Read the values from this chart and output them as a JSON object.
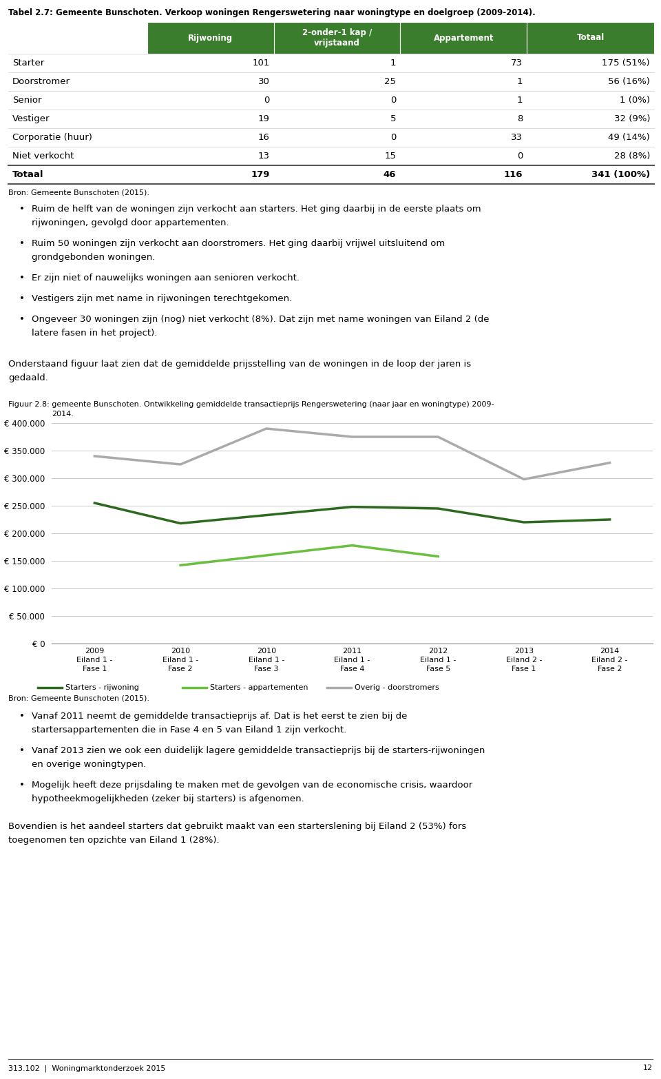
{
  "title_table": "Tabel 2.7: Gemeente Bunschoten. Verkoop woningen Rengerswetering naar woningtype en doelgroep (2009-2014).",
  "table_headers": [
    "",
    "Rijwoning",
    "2-onder-1 kap /\nvrijstaand",
    "Appartement",
    "Totaal"
  ],
  "table_rows": [
    [
      "Starter",
      "101",
      "1",
      "73",
      "175 (51%)"
    ],
    [
      "Doorstromer",
      "30",
      "25",
      "1",
      "56 (16%)"
    ],
    [
      "Senior",
      "0",
      "0",
      "1",
      "1 (0%)"
    ],
    [
      "Vestiger",
      "19",
      "5",
      "8",
      "32 (9%)"
    ],
    [
      "Corporatie (huur)",
      "16",
      "0",
      "33",
      "49 (14%)"
    ],
    [
      "Niet verkocht",
      "13",
      "15",
      "0",
      "28 (8%)"
    ]
  ],
  "table_total": [
    "Totaal",
    "179",
    "46",
    "116",
    "341 (100%)"
  ],
  "bron1": "Bron: Gemeente Bunschoten (2015).",
  "bullet_points_1": [
    [
      "Ruim de helft van de woningen zijn verkocht aan starters. Het ging daarbij in de eerste plaats om",
      "rijwoningen, gevolgd door appartementen."
    ],
    [
      "Ruim 50 woningen zijn verkocht aan doorstromers. Het ging daarbij vrijwel uitsluitend om",
      "grondgebonden woningen."
    ],
    [
      "Er zijn niet of nauwelijks woningen aan senioren verkocht."
    ],
    [
      "Vestigers zijn met name in rijwoningen terechtgekomen."
    ],
    [
      "Ongeveer 30 woningen zijn (nog) niet verkocht (8%). Dat zijn met name woningen van Eiland 2 (de",
      "latere fasen in het project)."
    ]
  ],
  "paragraph_1_lines": [
    "Onderstaand figuur laat zien dat de gemiddelde prijsstelling van de woningen in de loop der jaren is",
    "gedaald."
  ],
  "fig_caption_line1": "Figuur 2.8: gemeente Bunschoten. Ontwikkeling gemiddelde transactieprijs Rengerswetering (naar jaar en woningtype) 2009-",
  "fig_caption_line2": "        2014.",
  "chart_xlabel_groups": [
    [
      "2009",
      "Eiland 1 -",
      "Fase 1"
    ],
    [
      "2010",
      "Eiland 1 -",
      "Fase 2"
    ],
    [
      "2010",
      "Eiland 1 -",
      "Fase 3"
    ],
    [
      "2011",
      "Eiland 1 -",
      "Fase 4"
    ],
    [
      "2012",
      "Eiland 1 -",
      "Fase 5"
    ],
    [
      "2013",
      "Eiland 2 -",
      "Fase 1"
    ],
    [
      "2014",
      "Eiland 2 -",
      "Fase 2"
    ]
  ],
  "chart_yticks": [
    0,
    50000,
    100000,
    150000,
    200000,
    250000,
    300000,
    350000,
    400000
  ],
  "chart_ytick_labels": [
    "€ 0",
    "€ 50.000",
    "€ 100.000",
    "€ 150.000",
    "€ 200.000",
    "€ 250.000",
    "€ 300.000",
    "€ 350.000",
    "€ 400.000"
  ],
  "series": {
    "starters_rijwoning": {
      "label": "Starters - rijwoning",
      "color": "#2d6a1f",
      "x": [
        0,
        1,
        3,
        4,
        5,
        6
      ],
      "y": [
        255000,
        218000,
        248000,
        245000,
        220000,
        225000
      ]
    },
    "starters_appartementen": {
      "label": "Starters - appartementen",
      "color": "#6abf3e",
      "x": [
        1,
        2,
        3,
        4
      ],
      "y": [
        142000,
        160000,
        178000,
        158000
      ]
    },
    "overig_doorstromers": {
      "label": "Overig - doorstromers",
      "color": "#aaaaaa",
      "x": [
        0,
        1,
        2,
        3,
        4,
        5,
        6
      ],
      "y": [
        340000,
        325000,
        390000,
        375000,
        375000,
        298000,
        328000
      ]
    }
  },
  "bron2": "Bron: Gemeente Bunschoten (2015).",
  "bullet_points_2": [
    [
      "Vanaf 2011 neemt de gemiddelde transactieprijs af. Dat is het eerst te zien bij de",
      "startersappartementen die in Fase 4 en 5 van Eiland 1 zijn verkocht."
    ],
    [
      "Vanaf 2013 zien we ook een duidelijk lagere gemiddelde transactieprijs bij de starters-rijwoningen",
      "en overige woningtypen."
    ],
    [
      "Mogelijk heeft deze prijsdaling te maken met de gevolgen van de economische crisis, waardoor",
      "hypotheekmogelijkheden (zeker bij starters) is afgenomen."
    ]
  ],
  "paragraph_2": "Bovendien is het aandeel starters dat gebruikt maakt van een starterslening bij Eiland 2 (53%) fors toegenomen ten opzichte van Eiland 1 (28%).",
  "header_color": "#3a7d2c",
  "header_text_color": "#ffffff",
  "bg_color": "#ffffff"
}
